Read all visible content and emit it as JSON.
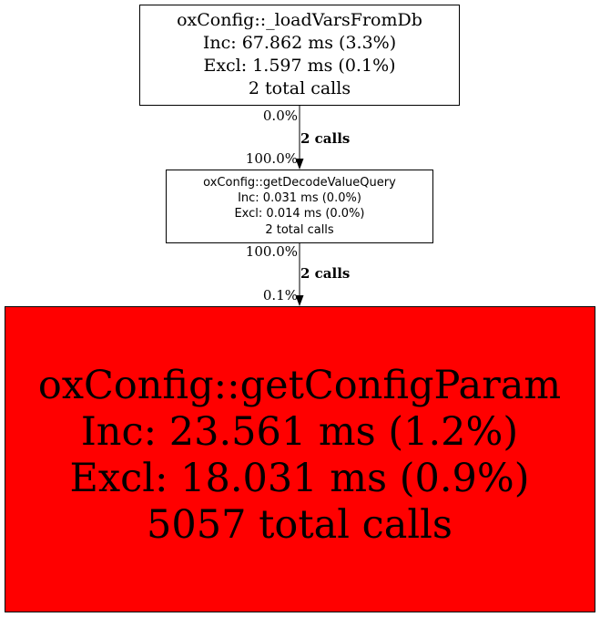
{
  "nodes": [
    {
      "name": "oxConfig::_loadVarsFromDb",
      "inc": "Inc: 67.862 ms (3.3%)",
      "excl": "Excl: 1.597 ms (0.1%)",
      "calls": "2 total calls",
      "fill": "#ffffff"
    },
    {
      "name": "oxConfig::getDecodeValueQuery",
      "inc": "Inc: 0.031 ms (0.0%)",
      "excl": "Excl: 0.014 ms (0.0%)",
      "calls": "2 total calls",
      "fill": "#ffffff"
    },
    {
      "name": "oxConfig::getConfigParam",
      "inc": "Inc: 23.561 ms (1.2%)",
      "excl": "Excl: 18.031 ms (0.9%)",
      "calls": "5057 total calls",
      "fill": "#ff0000"
    }
  ],
  "edges": [
    {
      "from": "oxConfig::_loadVarsFromDb",
      "to": "oxConfig::getDecodeValueQuery",
      "tail": "0.0%",
      "label": "2 calls",
      "head": "100.0%"
    },
    {
      "from": "oxConfig::getDecodeValueQuery",
      "to": "oxConfig::getConfigParam",
      "tail": "100.0%",
      "label": "2 calls",
      "head": "0.1%"
    }
  ]
}
